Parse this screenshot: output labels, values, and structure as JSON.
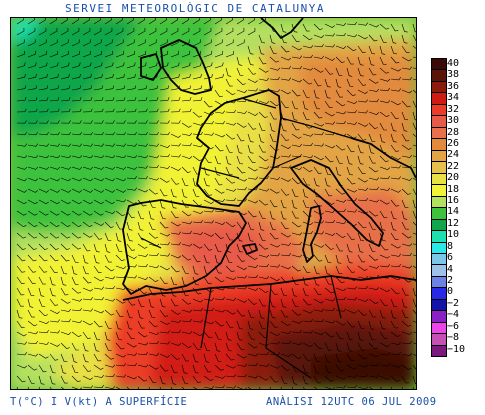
{
  "header": {
    "title": "SERVEI METEOROLÒGIC DE CATALUNYA"
  },
  "footer": {
    "left": "T(°C) I V(kt) A SUPERFÍCIE",
    "right": "ANÀLISI 12UTC 06 JUL 2009"
  },
  "legend": {
    "items": [
      {
        "label": "40",
        "color": "#3a0a06"
      },
      {
        "label": "38",
        "color": "#5a1408"
      },
      {
        "label": "36",
        "color": "#8a1c0c"
      },
      {
        "label": "34",
        "color": "#d21a14"
      },
      {
        "label": "32",
        "color": "#ec3c28"
      },
      {
        "label": "30",
        "color": "#e85a48"
      },
      {
        "label": "28",
        "color": "#e8704a"
      },
      {
        "label": "26",
        "color": "#e28a3c"
      },
      {
        "label": "24",
        "color": "#e2a444"
      },
      {
        "label": "22",
        "color": "#e6c04a"
      },
      {
        "label": "20",
        "color": "#e9e044"
      },
      {
        "label": "18",
        "color": "#f2f236"
      },
      {
        "label": "16",
        "color": "#b4e060"
      },
      {
        "label": "14",
        "color": "#3ec23c"
      },
      {
        "label": "12",
        "color": "#10a64a"
      },
      {
        "label": "10",
        "color": "#1ce0ae"
      },
      {
        "label": "8",
        "color": "#29e8e8"
      },
      {
        "label": "6",
        "color": "#7cc6ea"
      },
      {
        "label": "4",
        "color": "#9cc2ea"
      },
      {
        "label": "2",
        "color": "#6a82e6"
      },
      {
        "label": "0",
        "color": "#2828e8"
      },
      {
        "label": "−2",
        "color": "#1414a8"
      },
      {
        "label": "−4",
        "color": "#8a20c6"
      },
      {
        "label": "−6",
        "color": "#ee44ea"
      },
      {
        "label": "−8",
        "color": "#c650b6"
      },
      {
        "label": "−10",
        "color": "#7a1a7e"
      }
    ]
  }
}
